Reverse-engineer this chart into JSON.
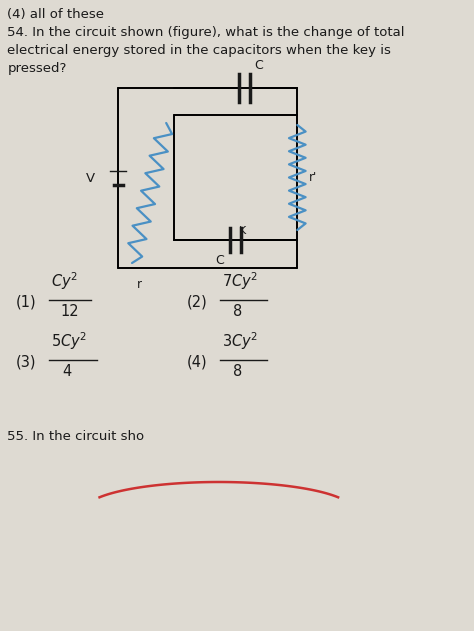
{
  "bg_color": "#dedad2",
  "text_color": "#1a1a1a",
  "blue_color": "#4a90c4",
  "prev_answer": "(4) all of these",
  "q_num": "54.",
  "q_line1": "In the circuit shown (figure), what is the change of total",
  "q_line2": "electrical energy stored in the capacitors when the key is",
  "q_line3": "pressed?",
  "next_q": "55. In the circuit sho",
  "opt1_num": "Cy",
  "opt1_den": "12",
  "opt1_prefix": "(1)",
  "opt2_num": "7Cy",
  "opt2_den": "8",
  "opt2_prefix": "(2)",
  "opt3_num": "5Cy",
  "opt3_den": "4",
  "opt3_prefix": "(3)",
  "opt4_num": "3Cy",
  "opt4_den": "8",
  "opt4_prefix": "(4)",
  "label_V": "V",
  "label_r": "r",
  "label_r2": "r'",
  "label_C": "C",
  "label_C2": "C",
  "label_K": "K"
}
